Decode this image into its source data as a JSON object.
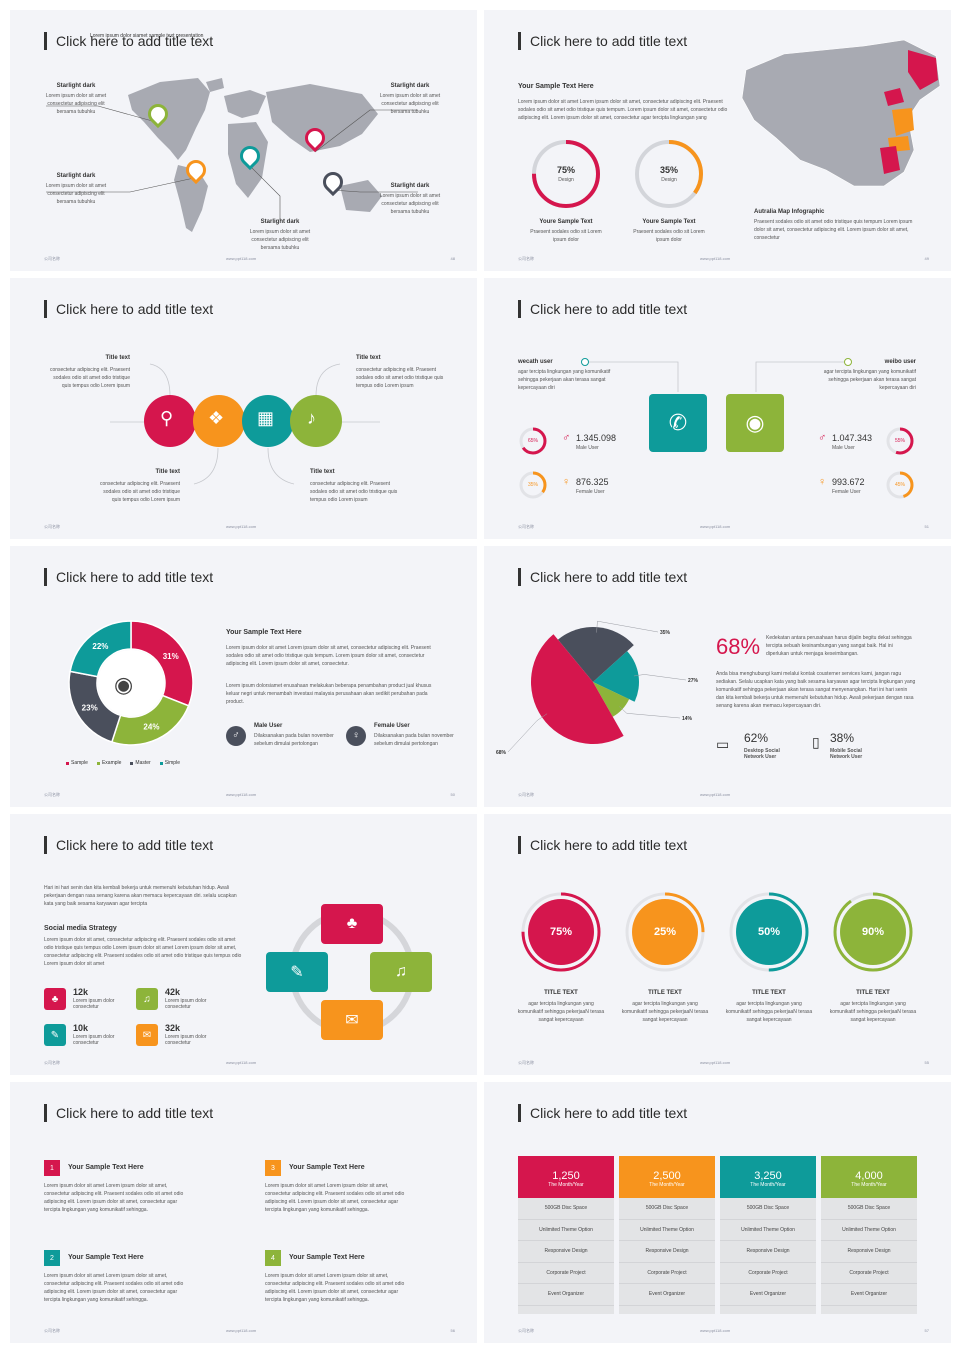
{
  "colors": {
    "red": "#d5164d",
    "orange": "#f7941d",
    "teal": "#0e9b9a",
    "green": "#8db43a",
    "dark": "#4a4f5c",
    "grey": "#b5b7bd"
  },
  "common": {
    "title": "Click here to add title text",
    "footer_left": "公司名称",
    "footer_center": "www.ppt118.com"
  },
  "slide1": {
    "subtitle": "Lorem ipsum dolor siamet sample text presentation",
    "page": "48",
    "labels": [
      {
        "title": "Starlight dark",
        "text": "Lorem ipsum dolor sit amet consectetur adipiscing elit bersama tubuhku"
      },
      {
        "title": "Starlight dark",
        "text": "Lorem ipsum dolor sit amet consectetur adipiscing elit bersama tubuhku"
      },
      {
        "title": "Starlight dark",
        "text": "Lorem ipsum dolor sit amet consectetur adipiscing elit bersama tubuhku"
      },
      {
        "title": "Starlight dark",
        "text": "Lorem ipsum dolor sit amet consectetur adipiscing elit bersama tubuhku"
      },
      {
        "title": "Starlight dark",
        "text": "Lorem ipsum dolor sit amet consectetur adipiscing elit bersama tubuhku"
      }
    ]
  },
  "slide2": {
    "page": "49",
    "heading": "Your Sample Text Here",
    "text": "Lorem ipsum dolor sit amet Lorem ipsum dolor sit amet, consectetur adipiscing elit. Praesent sodales odio sit amet odio tristique quis tempum. Lorem ipsum dolor sit amet, consectetur odio adipiscing elit. Lorem ipsum dolor sit amet, consectetur agar tercipta lingkungan yang",
    "rings": [
      {
        "value": "75%",
        "label": "Design",
        "pct": 0.75,
        "title": "Youre Sample Text",
        "text": "Praesent sodales odio sit Lorem ipsum dolor"
      },
      {
        "value": "35%",
        "label": "Design",
        "pct": 0.35,
        "title": "Youre Sample Text",
        "text": "Praesent sodales odio sit Lorem ipsum dolor"
      }
    ],
    "map_title": "Autralia Map Infographic",
    "map_text": "Praesent sodales odio sit amet odio tristique quis tempum Lorem ipsum dolor sit amet, consectetur adipiscing elit. Lorem ipsum dolor sit amet, consectetur"
  },
  "slide3": {
    "items": [
      {
        "title": "Title text",
        "text": "consectetur adipiscing elit. Praesent sodales odio sit amet odio tristique quis tempus odio Lorem ipsum"
      },
      {
        "title": "Title text",
        "text": "consectetur adipiscing elit. Praesent sodales odio sit amet odio tristique quis tempus odio Lorem ipsum"
      },
      {
        "title": "Title text",
        "text": "consectetur adipiscing elit. Praesent sodales odio sit amet odio tristique quis tempus odio Lorem ipsum"
      },
      {
        "title": "Title text",
        "text": "consectetur adipiscing elit. Praesent sodales odio sit amet odio tristique quis tempus odio Lorem ipsum"
      }
    ]
  },
  "slide4": {
    "page": "51",
    "left": {
      "title": "wecath user",
      "text": "agar tercipta lingkungan yang komunikatif sehingga pekerjaan akan terasa sangat kepercayaan diri",
      "male": {
        "pct": "65%",
        "pct_value": 0.65,
        "count": "1.345.098",
        "label": "Male User"
      },
      "female": {
        "pct": "35%",
        "pct_value": 0.35,
        "count": "876.325",
        "label": "Female User"
      }
    },
    "right": {
      "title": "weibo user",
      "text": "agar tercipta lingkungan yang komunikatif sehingga pekerjaan akan terasa sangat kepercayaan diri",
      "male": {
        "pct": "55%",
        "pct_value": 0.55,
        "count": "1.047.343",
        "label": "Male User"
      },
      "female": {
        "pct": "45%",
        "pct_value": 0.45,
        "count": "993.672",
        "label": "Female User"
      }
    }
  },
  "slide5": {
    "page": "50",
    "heading": "Your  Sample Text Here",
    "p1": "Lorem ipsum dolor sit amet Lorem ipsum dolor sit amet, consectetur adipiscing elit. Praesent sodales odio sit amet odio tristique quis tempum. Lorem ipsum dolor sit amet, consectetur adipiscing elit. Lorem ipsum dolor sit amet, consectetur.",
    "p2": "Lorem ipsum dolorsiamet enusahaan melakukan beberapa penambahan product jual khusus keluar negri untuk menambah investasi malaysia perusahaan akan sedikit perubahan pada product.",
    "male": {
      "title": "Male User",
      "text": "Dilaksanakan pada bulan november sebelum dimulai pertolongan"
    },
    "female": {
      "title": "Female User",
      "text": "Dilaksanakan pada bulan november sebelum dimulai pertolongan"
    }
  },
  "slide6": {
    "big": "68%",
    "big_text": "Kedekatan antara perusahaan harus dijalin begitu dekat sehingga tercipta sebuah kesinambungan yang sangat baik. Hal ini diperlukan untuk menjaga keseimbangan.",
    "body": "Anda bisa menghubungi kami melalui kontak cousterner services kami, jangan ragu sediakan. Selalu ucapkan kata yang baik sesama karyawan agar tercipta lingkungan yang komunikatif sehingga pekerjaan akan terasa sangat menyenangkan. Hari ini hari senin dan kita kembali bekerja untuk memenuhi kebutuhan hidup. Awali pekerjaan dengan rasa senang karena akan memacu kepercayaan diri.",
    "desktop": {
      "value": "62%",
      "label": "Desktop Social Network User"
    },
    "mobile": {
      "value": "38%",
      "label": "Mobile Social Network User"
    }
  },
  "slide7": {
    "intro": "Hari ini hari senin dan kita kembali bekerja untuk memenuhi kebutuhan hidup. Awali pekerjaan dengan rasa senang karena akan memacu kepercayaan diri. selalu ucapkan kata yang baik sesama karyawan agar tercipta",
    "heading": "Social media Strategy",
    "body": "Lorem ipsum dolor sit amet, consectetur adipiscing elit. Praesent sodales odio sit amet odio tristique quis tempus odio Lorem ipsum dolor sit amet Lorem ipsum dolor sit amet, consectetur adipiscing elit. Praesent sodales odio sit amet odio tristique quis tempus odio Lorem ipsum dolor sit amet",
    "stats": [
      {
        "value": "12k",
        "text": "Lorem ipsum dolor consectetur"
      },
      {
        "value": "42k",
        "text": "Lorem ipsum dolor consectetur"
      },
      {
        "value": "10k",
        "text": "Lorem ipsum dolor consectetur"
      },
      {
        "value": "32k",
        "text": "Lorem ipsum dolor consectetur"
      }
    ]
  },
  "slide8": {
    "page": "55",
    "items": [
      {
        "value": "75%",
        "pct": 0.75,
        "title": "TITLE TEXT",
        "text": "agar tercipta lingkungan yang komunikatif sehingga pekerjaaN terasa sangat kepercayaan"
      },
      {
        "value": "25%",
        "pct": 0.25,
        "title": "TITLE TEXT",
        "text": "agar tercipta lingkungan yang komunikatif sehingga pekerjaaN terasa sangat kepercayaan"
      },
      {
        "value": "50%",
        "pct": 0.5,
        "title": "TITLE TEXT",
        "text": "agar tercipta lingkungan yang komunikatif sehingga pekerjaaN terasa sangat kepercayaan"
      },
      {
        "value": "90%",
        "pct": 0.9,
        "title": "TITLE TEXT",
        "text": "agar tercipta lingkungan yang komunikatif sehingga pekerjaaN terasa sangat kepercayaan"
      }
    ]
  },
  "slide9": {
    "page": "56",
    "items": [
      {
        "num": "1",
        "title": "Your Sample Text Here",
        "text": "Lorem ipsum dolor sit amet Lorem ipsum dolor sit amet, consectetur adipiscing elit. Praesent sodales odio sit amet odio adipiscing elit. Lorem ipsum dolor sit amet, consectetur agar tercipta lingkungan yang komunikatif sehingga."
      },
      {
        "num": "3",
        "title": "Your Sample Text Here",
        "text": "Lorem ipsum dolor sit amet Lorem ipsum dolor sit amet, consectetur adipiscing elit. Praesent sodales odio sit amet odio adipiscing elit. Lorem ipsum dolor sit amet, consectetur agar tercipta lingkungan yang komunikatif sehingga."
      },
      {
        "num": "2",
        "title": "Your Sample Text Here",
        "text": "Lorem ipsum dolor sit amet Lorem ipsum dolor sit amet, consectetur adipiscing elit. Praesent sodales odio sit amet odio adipiscing elit. Lorem ipsum dolor sit amet, consectetur agar tercipta lingkungan yang komunikatif sehingga."
      },
      {
        "num": "4",
        "title": "Your Sample Text Here",
        "text": "Lorem ipsum dolor sit amet Lorem ipsum dolor sit amet, consectetur adipiscing elit. Praesent sodales odio sit amet odio adipiscing elit. Lorem ipsum dolor sit amet, consectetur agar tercipta lingkungan yang komunikatif sehingga."
      }
    ]
  },
  "slide10": {
    "page": "57",
    "plans": [
      {
        "price": "1,250",
        "period": "The Month/Year",
        "features": [
          "500GB Disc Space",
          "Unlimited Theme Option",
          "Responsive Design",
          "Corporate Project",
          "Event Organizer"
        ]
      },
      {
        "price": "2,500",
        "period": "The Month/Year",
        "features": [
          "500GB Disc Space",
          "Unlimited Theme Option",
          "Responsive Design",
          "Corporate Project",
          "Event Organizer"
        ]
      },
      {
        "price": "3,250",
        "period": "The Month/Year",
        "features": [
          "500GB Disc Space",
          "Unlimited Theme Option",
          "Responsive Design",
          "Corporate Project",
          "Event Organizer"
        ]
      },
      {
        "price": "4,000",
        "period": "The Month/Year",
        "features": [
          "500GB Disc Space",
          "Unlimited Theme Option",
          "Responsive Design",
          "Corporate Project",
          "Event Organizer"
        ]
      }
    ]
  },
  "chart_data": [
    {
      "type": "pie",
      "categories": [
        "Sample",
        "Example",
        "Master",
        "Simple"
      ],
      "values": [
        31,
        24,
        23,
        22
      ],
      "labels": [
        "31%",
        "24%",
        "23%",
        "22%"
      ]
    },
    {
      "type": "pie",
      "categories": [
        "",
        "",
        "",
        ""
      ],
      "values": [
        35,
        27,
        14,
        68
      ],
      "labels": [
        "35%",
        "27%",
        "14%",
        "68%"
      ]
    }
  ]
}
